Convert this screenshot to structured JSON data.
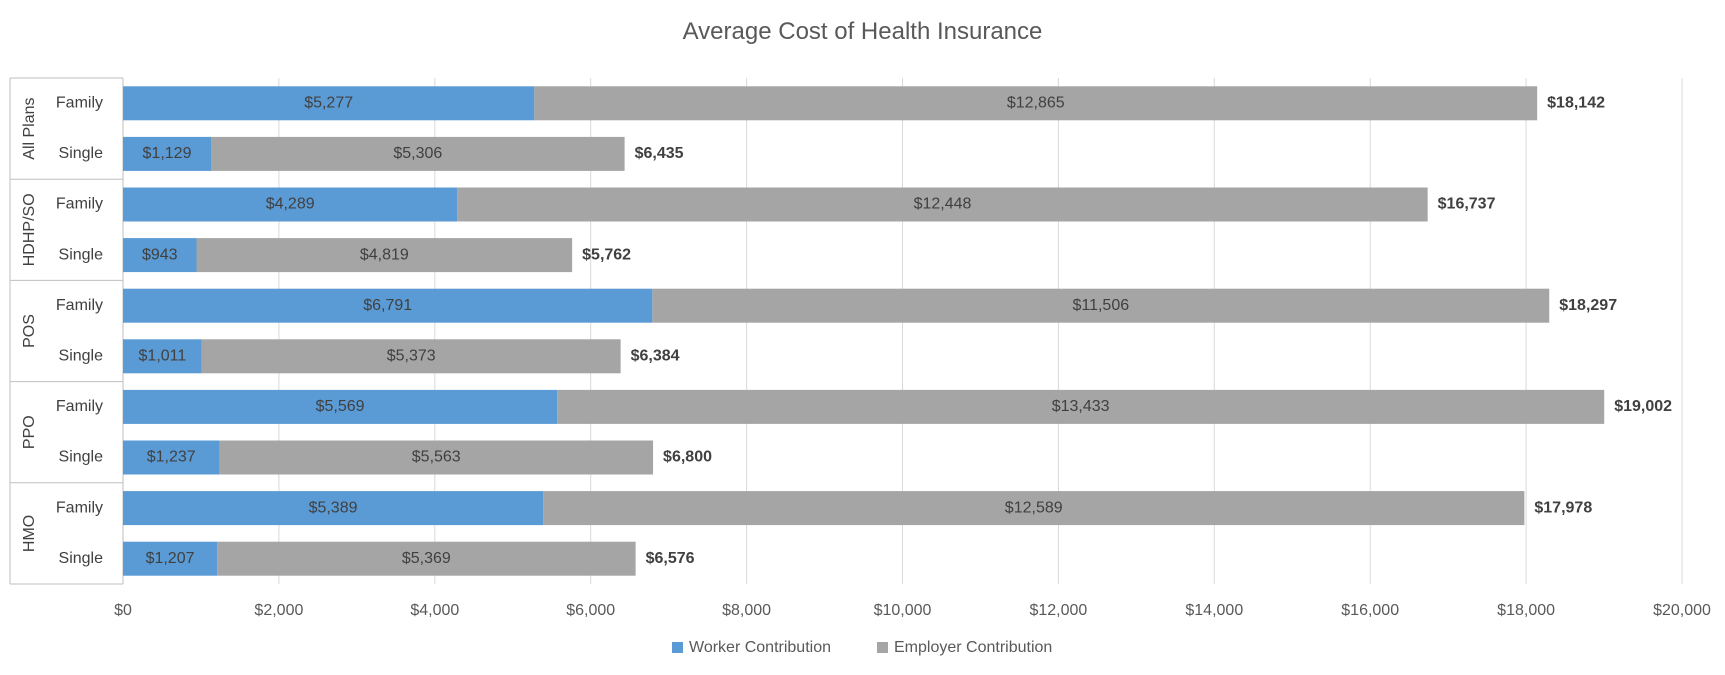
{
  "chart_data": {
    "type": "bar",
    "orientation": "horizontal",
    "stacked": true,
    "title": "Average Cost of Health Insurance",
    "xlim": [
      0,
      20000
    ],
    "xticks": [
      0,
      2000,
      4000,
      6000,
      8000,
      10000,
      12000,
      14000,
      16000,
      18000,
      20000
    ],
    "xtick_labels": [
      "$0",
      "$2,000",
      "$4,000",
      "$6,000",
      "$8,000",
      "$10,000",
      "$12,000",
      "$14,000",
      "$16,000",
      "$18,000",
      "$20,000"
    ],
    "grid": "vertical",
    "legend_position": "bottom",
    "groups": [
      {
        "name": "All Plans",
        "rows": [
          {
            "label": "Family",
            "worker": 5277,
            "employer": 12865,
            "worker_label": "$5,277",
            "employer_label": "$12,865",
            "total_label": "$18,142"
          },
          {
            "label": "Single",
            "worker": 1129,
            "employer": 5306,
            "worker_label": "$1,129",
            "employer_label": "$5,306",
            "total_label": "$6,435"
          }
        ]
      },
      {
        "name": "HDHP/SO",
        "rows": [
          {
            "label": "Family",
            "worker": 4289,
            "employer": 12448,
            "worker_label": "$4,289",
            "employer_label": "$12,448",
            "total_label": "$16,737"
          },
          {
            "label": "Single",
            "worker": 943,
            "employer": 4819,
            "worker_label": "$943",
            "employer_label": "$4,819",
            "total_label": "$5,762"
          }
        ]
      },
      {
        "name": "POS",
        "rows": [
          {
            "label": "Family",
            "worker": 6791,
            "employer": 11506,
            "worker_label": "$6,791",
            "employer_label": "$11,506",
            "total_label": "$18,297"
          },
          {
            "label": "Single",
            "worker": 1011,
            "employer": 5373,
            "worker_label": "$1,011",
            "employer_label": "$5,373",
            "total_label": "$6,384"
          }
        ]
      },
      {
        "name": "PPO",
        "rows": [
          {
            "label": "Family",
            "worker": 5569,
            "employer": 13433,
            "worker_label": "$5,569",
            "employer_label": "$13,433",
            "total_label": "$19,002"
          },
          {
            "label": "Single",
            "worker": 1237,
            "employer": 5563,
            "worker_label": "$1,237",
            "employer_label": "$5,563",
            "total_label": "$6,800"
          }
        ]
      },
      {
        "name": "HMO",
        "rows": [
          {
            "label": "Family",
            "worker": 5389,
            "employer": 12589,
            "worker_label": "$5,389",
            "employer_label": "$12,589",
            "total_label": "$17,978"
          },
          {
            "label": "Single",
            "worker": 1207,
            "employer": 5369,
            "worker_label": "$1,207",
            "employer_label": "$5,369",
            "total_label": "$6,576"
          }
        ]
      }
    ],
    "series": [
      {
        "name": "Worker Contribution",
        "color": "#5b9bd5"
      },
      {
        "name": "Employer Contribution",
        "color": "#a5a5a5"
      }
    ]
  }
}
